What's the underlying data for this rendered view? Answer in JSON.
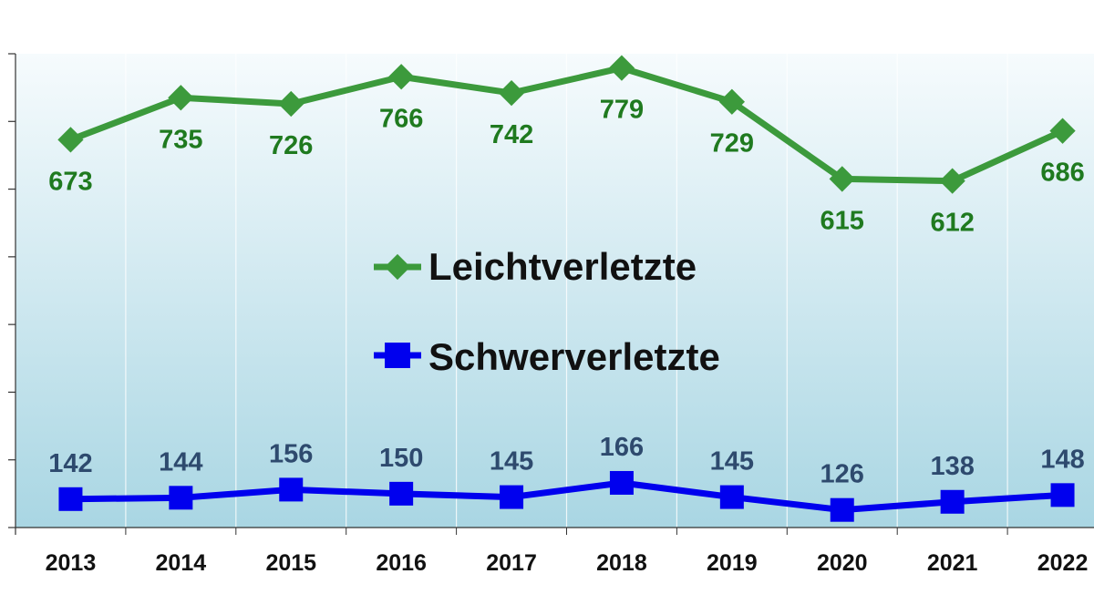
{
  "chart_data": {
    "type": "line",
    "categories": [
      "2013",
      "2014",
      "2015",
      "2016",
      "2017",
      "2018",
      "2019",
      "2020",
      "2021",
      "2022"
    ],
    "series": [
      {
        "name": "Leichtverletzte",
        "values": [
          673,
          735,
          726,
          766,
          742,
          779,
          729,
          615,
          612,
          686
        ],
        "color": "#3c9a3c",
        "label_color": "#1f7a1f",
        "marker": "diamond"
      },
      {
        "name": "Schwerverletzte",
        "values": [
          142,
          144,
          156,
          150,
          145,
          166,
          145,
          126,
          138,
          148
        ],
        "color": "#0000ee",
        "label_color": "#2e4a6e",
        "marker": "square"
      }
    ],
    "ylim": [
      100,
      800
    ],
    "ytick_step": 100,
    "ytick_labels_visible": false,
    "grid": "vertical category separators",
    "legend": "center",
    "background": "gradient white to light blue"
  }
}
